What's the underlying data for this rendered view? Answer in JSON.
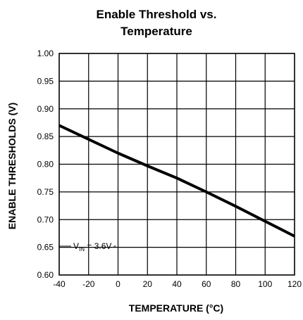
{
  "chart_data": {
    "type": "line",
    "title_lines": [
      "Enable Threshold vs.",
      "Temperature"
    ],
    "xlabel": "TEMPERATURE (°C)",
    "ylabel": "ENABLE THRESHOLDS (V)",
    "xlim": [
      -40,
      120
    ],
    "ylim": [
      0.6,
      1.0
    ],
    "xticks": [
      -40,
      -20,
      0,
      20,
      40,
      60,
      80,
      100,
      120
    ],
    "yticks": [
      0.6,
      0.65,
      0.7,
      0.75,
      0.8,
      0.85,
      0.9,
      0.95,
      1.0
    ],
    "xtick_labels": [
      "-40",
      "-20",
      "0",
      "20",
      "40",
      "60",
      "80",
      "100",
      "120"
    ],
    "ytick_labels": [
      "0.60",
      "0.65",
      "0.70",
      "0.75",
      "0.80",
      "0.85",
      "0.90",
      "0.95",
      "1.00"
    ],
    "grid": true,
    "legend": "none",
    "series": [
      {
        "x": [
          -40,
          -20,
          0,
          20,
          40,
          60,
          80,
          100,
          120
        ],
        "y": [
          0.87,
          0.845,
          0.82,
          0.797,
          0.775,
          0.75,
          0.724,
          0.697,
          0.67
        ],
        "color": "#000000"
      }
    ],
    "annotation": {
      "prefix": "V",
      "subscript": "IN",
      "suffix": " = 3.6V",
      "anchor_x": -40,
      "anchor_y": 0.652
    }
  }
}
